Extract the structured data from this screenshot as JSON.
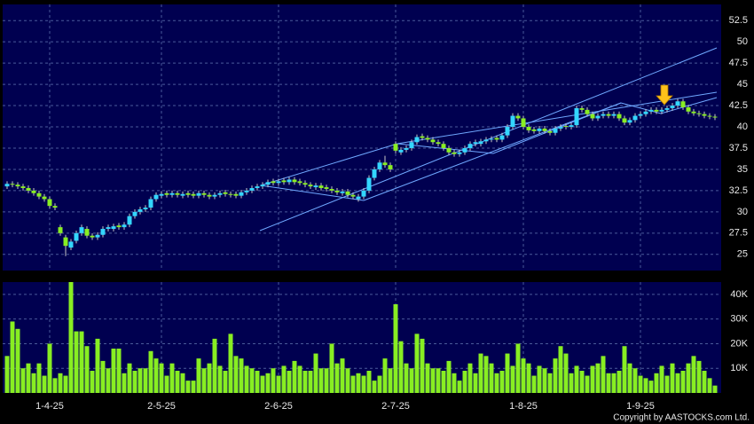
{
  "chart_data": [
    {
      "type": "candlestick",
      "up_color": "#33d6ff",
      "down_color": "#88ee22",
      "grid": true,
      "ylim": [
        23.1,
        54.4
      ],
      "yticks": [
        25,
        27.5,
        30,
        32.5,
        35,
        37.5,
        40,
        42.5,
        45,
        47.5,
        50,
        52.5
      ],
      "open": [
        33.0,
        33.3,
        33.2,
        33.0,
        32.8,
        32.5,
        32.2,
        31.8,
        31.5,
        30.7,
        28.2,
        27.0,
        25.8,
        26.6,
        27.5,
        28.0,
        27.2,
        27.0,
        27.3,
        28.0,
        28.0,
        28.4,
        28.2,
        28.5,
        29.5,
        30.0,
        30.3,
        30.5,
        31.5,
        31.9,
        32.2,
        32.0,
        32.2,
        31.9,
        32.2,
        32.1,
        31.9,
        32.2,
        32.0,
        31.8,
        32.0,
        32.3,
        32.1,
        32.1,
        31.9,
        32.3,
        32.5,
        32.8,
        33.0,
        33.2,
        33.6,
        33.4,
        33.7,
        33.5,
        33.8,
        33.6,
        33.4,
        33.2,
        32.9,
        33.1,
        32.9,
        32.7,
        32.5,
        32.2,
        32.4,
        32.0,
        31.5,
        31.8,
        32.5,
        34.0,
        35.0,
        35.8,
        35.5,
        38.0,
        37.0,
        37.3,
        37.5,
        38.2,
        38.9,
        38.7,
        38.5,
        38.2,
        38.0,
        37.5,
        37.0,
        36.8,
        37.0,
        37.5,
        38.0,
        38.0,
        38.3,
        38.5,
        38.7,
        38.5,
        39.0,
        40.0,
        41.3,
        41.0,
        40.0,
        39.7,
        39.5,
        39.8,
        39.5,
        39.3,
        39.8,
        40.1,
        40.0,
        40.2,
        42.2,
        42.0,
        41.5,
        41.0,
        41.3,
        41.5,
        41.3,
        41.5,
        41.0,
        40.5,
        40.8,
        41.3,
        41.5,
        41.8,
        42.0,
        41.8,
        42.0,
        42.2,
        42.5,
        43.0,
        42.3,
        41.8,
        41.6,
        41.5,
        41.3,
        41.2
      ],
      "high": [
        33.6,
        33.6,
        33.5,
        33.3,
        33.1,
        32.8,
        32.5,
        32.1,
        31.8,
        31.0,
        28.5,
        27.3,
        26.8,
        27.8,
        28.5,
        28.3,
        27.5,
        27.6,
        28.3,
        28.5,
        28.6,
        28.7,
        28.8,
        29.8,
        30.3,
        30.6,
        30.8,
        31.8,
        32.3,
        32.4,
        32.5,
        32.5,
        32.5,
        32.4,
        32.5,
        32.4,
        32.5,
        32.5,
        32.3,
        32.3,
        32.5,
        32.6,
        32.4,
        32.4,
        32.6,
        32.8,
        33.1,
        33.3,
        33.5,
        33.8,
        33.9,
        33.9,
        34.0,
        34.1,
        34.1,
        33.9,
        33.7,
        33.5,
        33.4,
        33.4,
        33.2,
        33.0,
        32.8,
        32.7,
        32.7,
        32.3,
        32.1,
        32.8,
        34.3,
        35.3,
        36.1,
        36.6,
        35.8,
        38.3,
        37.6,
        37.8,
        38.5,
        39.1,
        39.2,
        39.0,
        38.8,
        38.5,
        38.3,
        37.8,
        37.3,
        37.3,
        37.8,
        38.3,
        38.5,
        38.6,
        38.8,
        38.9,
        39.0,
        39.3,
        40.3,
        41.6,
        41.6,
        41.3,
        40.3,
        40.0,
        40.1,
        40.1,
        39.8,
        40.1,
        40.3,
        40.4,
        40.5,
        42.5,
        42.5,
        42.3,
        41.8,
        41.6,
        41.8,
        41.8,
        41.8,
        41.8,
        41.3,
        41.1,
        41.6,
        41.8,
        42.1,
        42.3,
        42.3,
        42.3,
        42.5,
        42.8,
        43.3,
        43.3,
        42.6,
        42.1,
        41.9,
        41.8,
        41.6,
        41.5
      ],
      "low": [
        32.7,
        32.9,
        32.7,
        32.5,
        32.2,
        31.9,
        31.5,
        31.2,
        30.4,
        30.2,
        27.2,
        24.8,
        25.5,
        26.3,
        27.2,
        26.9,
        26.7,
        26.7,
        27.0,
        27.7,
        27.7,
        27.9,
        27.9,
        28.2,
        29.2,
        29.7,
        30.0,
        30.2,
        31.2,
        31.6,
        31.7,
        31.7,
        31.7,
        31.6,
        31.7,
        31.6,
        31.6,
        31.7,
        31.5,
        31.5,
        31.7,
        31.8,
        31.7,
        31.6,
        31.6,
        32.0,
        32.2,
        32.5,
        32.7,
        32.9,
        33.1,
        33.1,
        33.2,
        33.2,
        33.2,
        33.1,
        32.9,
        32.7,
        32.6,
        32.5,
        32.4,
        32.2,
        32.0,
        31.9,
        31.7,
        31.5,
        31.2,
        31.5,
        32.2,
        33.7,
        34.7,
        35.2,
        34.7,
        36.9,
        36.7,
        37.0,
        37.2,
        37.9,
        38.4,
        38.2,
        37.9,
        37.7,
        37.2,
        36.7,
        36.5,
        36.5,
        36.7,
        37.2,
        37.7,
        37.7,
        38.0,
        38.2,
        38.2,
        38.2,
        38.7,
        39.7,
        40.7,
        39.7,
        39.3,
        39.2,
        39.2,
        39.2,
        39.0,
        39.0,
        39.5,
        39.7,
        39.7,
        39.9,
        41.7,
        41.2,
        40.7,
        40.7,
        41.0,
        41.0,
        41.0,
        40.7,
        40.2,
        40.2,
        40.5,
        41.0,
        41.2,
        41.5,
        41.5,
        41.5,
        41.7,
        41.9,
        42.2,
        42.0,
        41.5,
        41.3,
        41.2,
        41.0,
        40.9,
        40.8
      ],
      "close": [
        33.3,
        33.2,
        33.0,
        32.8,
        32.5,
        32.2,
        31.8,
        31.5,
        30.7,
        30.5,
        27.5,
        26.0,
        26.5,
        27.5,
        28.2,
        27.2,
        27.0,
        27.3,
        28.0,
        28.2,
        28.3,
        28.2,
        28.5,
        29.5,
        30.0,
        30.3,
        30.5,
        31.5,
        32.0,
        32.1,
        32.0,
        32.2,
        32.0,
        32.1,
        32.0,
        31.9,
        32.2,
        32.0,
        31.8,
        32.0,
        32.2,
        32.1,
        32.0,
        31.9,
        32.3,
        32.5,
        32.8,
        33.0,
        33.2,
        33.5,
        33.4,
        33.6,
        33.5,
        33.8,
        33.5,
        33.4,
        33.2,
        33.0,
        33.1,
        32.8,
        32.7,
        32.5,
        32.3,
        32.4,
        32.0,
        31.8,
        31.8,
        32.5,
        34.0,
        35.0,
        35.8,
        35.5,
        35.0,
        37.2,
        37.3,
        37.5,
        38.2,
        38.8,
        38.7,
        38.5,
        38.2,
        38.0,
        37.5,
        37.0,
        36.8,
        37.0,
        37.5,
        38.0,
        38.2,
        38.3,
        38.5,
        38.6,
        38.5,
        39.0,
        40.0,
        41.3,
        41.0,
        40.0,
        39.6,
        39.5,
        39.8,
        39.5,
        39.3,
        39.8,
        40.0,
        40.0,
        40.2,
        42.2,
        42.0,
        41.5,
        41.0,
        41.3,
        41.5,
        41.3,
        41.5,
        41.0,
        40.5,
        40.8,
        41.3,
        41.5,
        41.8,
        42.0,
        41.8,
        42.0,
        42.2,
        42.5,
        43.0,
        42.3,
        41.8,
        41.6,
        41.5,
        41.3,
        41.2,
        41.1
      ]
    },
    {
      "type": "bar",
      "color": "#88ee22",
      "grid": true,
      "ylim": [
        0,
        45000
      ],
      "yticks": [
        {
          "value": 10000,
          "label": "10K"
        },
        {
          "value": 20000,
          "label": "20K"
        },
        {
          "value": 30000,
          "label": "30K"
        },
        {
          "value": 40000,
          "label": "40K"
        }
      ],
      "categories": [
        null,
        null,
        null,
        null,
        null,
        null,
        null,
        null,
        "1-4-25",
        null,
        null,
        null,
        null,
        null,
        null,
        null,
        null,
        null,
        null,
        null,
        null,
        null,
        null,
        null,
        null,
        null,
        null,
        null,
        null,
        "2-5-25",
        null,
        null,
        null,
        null,
        null,
        null,
        null,
        null,
        null,
        null,
        null,
        null,
        null,
        null,
        null,
        null,
        null,
        null,
        null,
        null,
        null,
        "2-6-25",
        null,
        null,
        null,
        null,
        null,
        null,
        null,
        null,
        null,
        null,
        null,
        null,
        null,
        null,
        null,
        null,
        null,
        null,
        null,
        null,
        null,
        "2-7-25",
        null,
        null,
        null,
        null,
        null,
        null,
        null,
        null,
        null,
        null,
        null,
        null,
        null,
        null,
        null,
        null,
        null,
        null,
        null,
        null,
        null,
        null,
        null,
        "1-8-25",
        null,
        null,
        null,
        null,
        null,
        null,
        null,
        null,
        null,
        null,
        null,
        null,
        null,
        null,
        null,
        null,
        null,
        null,
        null,
        null,
        null,
        "1-9-25",
        null,
        null,
        null,
        null,
        null,
        null,
        null,
        null,
        null,
        null,
        null,
        null,
        null,
        null
      ],
      "values": [
        15000,
        29000,
        26000,
        10000,
        12000,
        8000,
        12000,
        7000,
        20000,
        6000,
        8000,
        7000,
        45000,
        25000,
        25000,
        19000,
        9000,
        22000,
        13000,
        10000,
        18000,
        18000,
        8000,
        12000,
        9000,
        10000,
        10000,
        17000,
        14000,
        12000,
        7000,
        12000,
        9000,
        8000,
        5000,
        5000,
        14000,
        10000,
        12000,
        22000,
        11000,
        9000,
        24000,
        15000,
        14000,
        11000,
        10000,
        9000,
        7000,
        8000,
        10000,
        7000,
        11000,
        9000,
        13000,
        11000,
        9000,
        9000,
        16000,
        10000,
        10000,
        20000,
        12000,
        14000,
        10000,
        7000,
        8000,
        7000,
        9000,
        5000,
        7000,
        14000,
        10000,
        36000,
        21000,
        12000,
        10000,
        24000,
        22000,
        12000,
        10000,
        10000,
        9000,
        13000,
        8000,
        5000,
        9000,
        12000,
        8000,
        16000,
        15000,
        12000,
        8000,
        9000,
        16000,
        11000,
        20000,
        14000,
        12000,
        7000,
        11000,
        10000,
        8000,
        14000,
        19000,
        16000,
        8000,
        11000,
        9000,
        7000,
        11000,
        12000,
        15000,
        8000,
        8000,
        9000,
        19000,
        12000,
        10000,
        7000,
        6000,
        5000,
        8000,
        11000,
        7000,
        12000,
        8000,
        9000,
        12000,
        15000,
        13000,
        9000,
        6000,
        3000
      ]
    }
  ],
  "copyright": "Copyright by AASTOCKS.com Ltd."
}
